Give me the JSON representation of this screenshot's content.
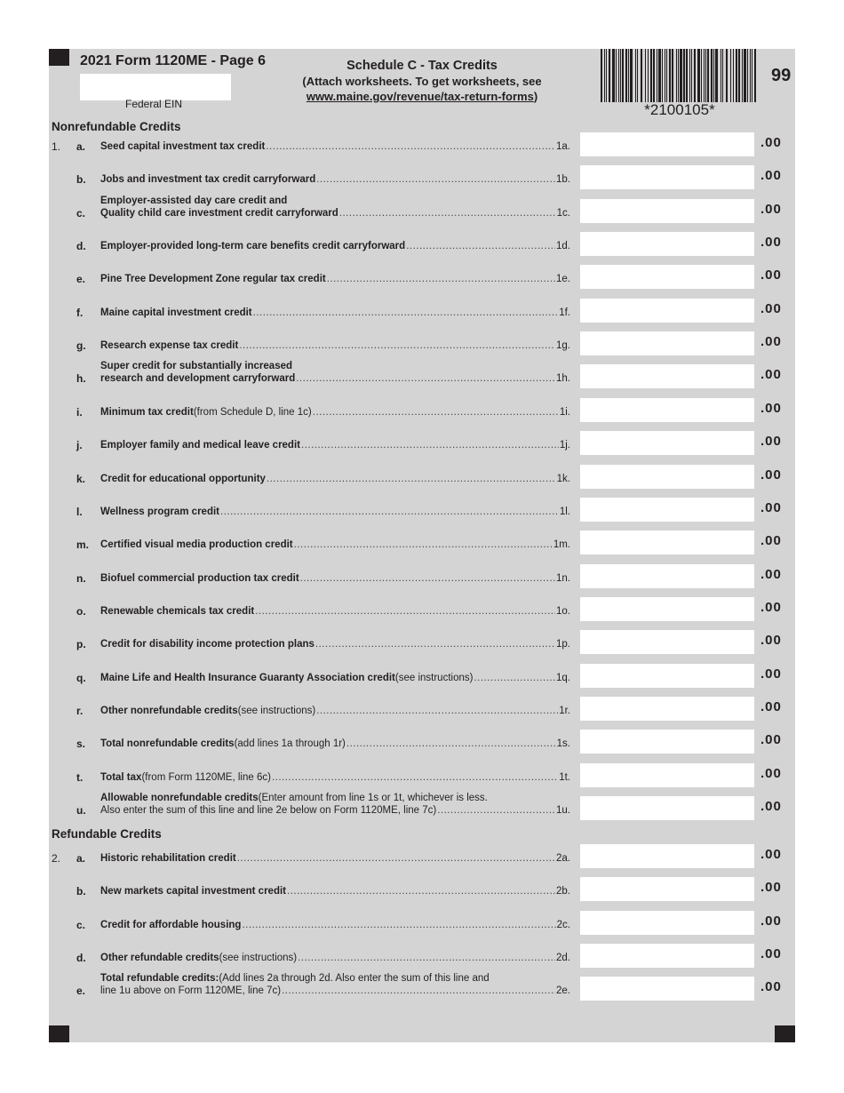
{
  "header": {
    "title": "2021 Form 1120ME - Page 6",
    "ein_label": "Federal EIN",
    "schedule_title": "Schedule C - Tax Credits",
    "schedule_note": "(Attach worksheets. To get worksheets, see",
    "schedule_link": "www.maine.gov/revenue/tax-return-forms",
    "schedule_note_end": ")",
    "barcode_text": "*2100105*",
    "page_code": "99"
  },
  "sections": {
    "nonrefundable": "Nonrefundable Credits",
    "refundable": "Refundable Credits"
  },
  "nonrefundable": [
    {
      "num": "1.",
      "letter": "a.",
      "bold": "Seed capital investment tax credit",
      "normal": " ",
      "ref": "1a.",
      "cents": ".00"
    },
    {
      "num": "",
      "letter": "b.",
      "bold": "Jobs and investment tax credit carryforward",
      "normal": "",
      "ref": "1b.",
      "cents": ".00"
    },
    {
      "num": "",
      "letter": "c.",
      "line1_bold": "Employer-assisted day care credit and",
      "line1_normal": "",
      "bold": "Quality child care investment credit carryforward",
      "normal": "",
      "ref": "1c.",
      "cents": ".00"
    },
    {
      "num": "",
      "letter": "d.",
      "bold": "Employer-provided long-term care benefits credit carryforward",
      "normal": "",
      "ref": "1d.",
      "cents": ".00"
    },
    {
      "num": "",
      "letter": "e.",
      "bold": "Pine Tree Development Zone regular tax credit",
      "normal": " ",
      "ref": "1e.",
      "cents": ".00"
    },
    {
      "num": "",
      "letter": "f.",
      "bold": "Maine capital investment credit",
      "normal": "",
      "ref": "1f.",
      "cents": ".00"
    },
    {
      "num": "",
      "letter": "g.",
      "bold": "Research expense tax credit",
      "normal": "",
      "ref": "1g.",
      "cents": ".00"
    },
    {
      "num": "",
      "letter": "h.",
      "line1_bold": "Super credit for substantially increased",
      "line1_normal": "",
      "bold": "research and development carryforward",
      "normal": "",
      "ref": "1h.",
      "cents": ".00"
    },
    {
      "num": "",
      "letter": "i.",
      "bold": "Minimum tax credit",
      "normal": " (from Schedule D, line 1c)",
      "ref": "1i.",
      "cents": ".00"
    },
    {
      "num": "",
      "letter": "j.",
      "bold": "Employer family and medical leave credit",
      "normal": "",
      "ref": "1j.",
      "cents": ".00"
    },
    {
      "num": "",
      "letter": "k.",
      "bold": "Credit for educational opportunity",
      "normal": " ",
      "ref": "1k.",
      "cents": ".00"
    },
    {
      "num": "",
      "letter": "l.",
      "bold": "Wellness program credit",
      "normal": " ",
      "ref": "1l.",
      "cents": ".00"
    },
    {
      "num": "",
      "letter": "m.",
      "bold": "Certified visual media production credit",
      "normal": "",
      "ref": "1m.",
      "cents": ".00"
    },
    {
      "num": "",
      "letter": "n.",
      "bold": "Biofuel commercial production tax credit",
      "normal": " ",
      "ref": "1n.",
      "cents": ".00"
    },
    {
      "num": "",
      "letter": "o.",
      "bold": "Renewable chemicals tax credit",
      "normal": " ",
      "ref": "1o.",
      "cents": ".00"
    },
    {
      "num": "",
      "letter": "p.",
      "bold": "Credit for disability income protection plans",
      "normal": "",
      "ref": "1p.",
      "cents": ".00"
    },
    {
      "num": "",
      "letter": "q.",
      "bold": "Maine Life and Health Insurance Guaranty Association credit",
      "normal": " (see instructions)",
      "ref": "1q.",
      "cents": ".00"
    },
    {
      "num": "",
      "letter": "r.",
      "bold": "Other nonrefundable credits",
      "normal": " (see instructions)",
      "ref": "1r.",
      "cents": ".00"
    },
    {
      "num": "",
      "letter": "s.",
      "bold": "Total nonrefundable credits",
      "normal": " (add lines 1a through 1r)",
      "ref": "1s.",
      "cents": ".00"
    },
    {
      "num": "",
      "letter": "t.",
      "bold": "Total tax",
      "normal": " (from Form 1120ME, line 6c)",
      "ref": "1t.",
      "cents": ".00"
    },
    {
      "num": "",
      "letter": "u.",
      "line1_bold": "Allowable nonrefundable credits",
      "line1_normal": " (Enter amount from line 1s or 1t, whichever is less.",
      "bold": "",
      "normal": "Also enter the sum of this line and line 2e below on Form 1120ME, line 7c)",
      "ref": "1u.",
      "cents": ".00"
    }
  ],
  "refundable": [
    {
      "num": "2.",
      "letter": "a.",
      "bold": "Historic rehabilitation credit",
      "normal": "",
      "ref": "2a.",
      "cents": ".00"
    },
    {
      "num": "",
      "letter": "b.",
      "bold": "New markets capital investment credit",
      "normal": "",
      "ref": "2b.",
      "cents": ".00"
    },
    {
      "num": "",
      "letter": "c.",
      "bold": "Credit for affordable housing",
      "normal": "",
      "ref": "2c.",
      "cents": ".00"
    },
    {
      "num": "",
      "letter": "d.",
      "bold": "Other refundable credits",
      "normal": " (see instructions)",
      "ref": "2d.",
      "cents": ".00"
    },
    {
      "num": "",
      "letter": "e.",
      "line1_bold": "Total refundable credits:",
      "line1_normal": " (Add lines 2a through 2d. Also enter the sum of this line and",
      "bold": "",
      "normal": "line 1u above on Form 1120ME, line 7c)",
      "ref": "2e.",
      "cents": ".00"
    }
  ]
}
